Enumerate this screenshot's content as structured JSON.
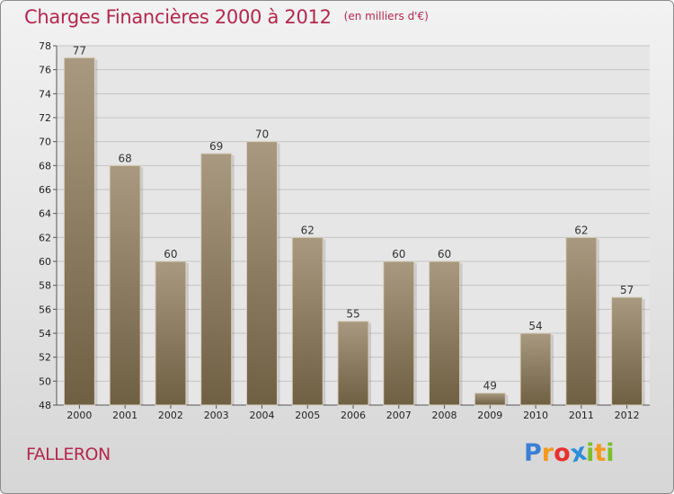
{
  "header": {
    "title": "Charges Financières 2000 à 2012",
    "subtitle": "(en milliers d'€)"
  },
  "commune": "FALLERON",
  "logo": {
    "text": "Proxiti",
    "letters": [
      {
        "ch": "P",
        "color": "#3a7fd5"
      },
      {
        "ch": "r",
        "color": "#f29a1f"
      },
      {
        "ch": "o",
        "color": "#e8312f"
      },
      {
        "ch": "x",
        "color": "#2e8fd8"
      },
      {
        "ch": "i",
        "color": "#7cbf2a"
      },
      {
        "ch": "t",
        "color": "#f29a1f"
      },
      {
        "ch": "i",
        "color": "#7cbf2a"
      }
    ]
  },
  "colors": {
    "accent": "#b3274c",
    "bar_top": "#a89980",
    "bar_bottom": "#6f5f43"
  },
  "chart_data": {
    "type": "bar",
    "title": "Charges Financières 2000 à 2012",
    "subtitle": "(en milliers d'€)",
    "xlabel": "",
    "ylabel": "",
    "categories": [
      "2000",
      "2001",
      "2002",
      "2003",
      "2004",
      "2005",
      "2006",
      "2007",
      "2008",
      "2009",
      "2010",
      "2011",
      "2012"
    ],
    "values": [
      77,
      68,
      60,
      69,
      70,
      62,
      55,
      60,
      60,
      49,
      54,
      62,
      57
    ],
    "ylim": [
      48,
      78
    ],
    "yticks": [
      48,
      50,
      52,
      54,
      56,
      58,
      60,
      62,
      64,
      66,
      68,
      70,
      72,
      74,
      76,
      78
    ],
    "grid": true,
    "legend": "none",
    "data_labels": true
  }
}
